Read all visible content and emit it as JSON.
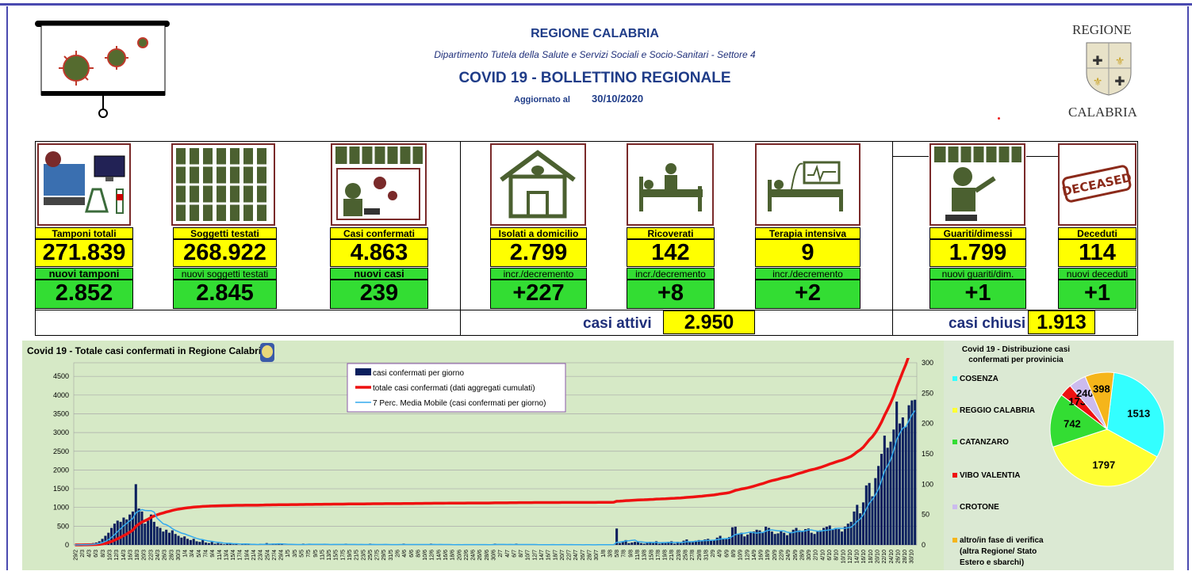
{
  "header": {
    "region": "REGIONE CALABRIA",
    "department": "Dipartimento Tutela della Salute e Servizi Sociali e Socio-Sanitari - Settore 4",
    "title": "COVID 19 - BOLLETTINO REGIONALE",
    "updated_label": "Aggiornato al",
    "updated_date": "30/10/2020",
    "logo_top": "REGIONE",
    "logo_bottom": "CALABRIA"
  },
  "stats": {
    "tamponi": {
      "label": "Tamponi totali",
      "value": "271.839",
      "sub_label": "nuovi tamponi",
      "sub_value": "2.852"
    },
    "soggetti": {
      "label": "Soggetti testati",
      "value": "268.922",
      "sub_label": "nuovi soggetti testati",
      "sub_value": "2.845"
    },
    "confermati": {
      "label": "Casi confermati",
      "value": "4.863",
      "sub_label": "nuovi casi",
      "sub_value": "239"
    },
    "isolati": {
      "label": "Isolati a domicilio",
      "value": "2.799",
      "sub_label": "incr./decremento",
      "sub_value": "+227"
    },
    "ricoverati": {
      "label": "Ricoverati",
      "value": "142",
      "sub_label": "incr./decremento",
      "sub_value": "+8"
    },
    "terapia": {
      "label": "Terapia intensiva",
      "value": "9",
      "sub_label": "incr./decremento",
      "sub_value": "+2"
    },
    "guariti": {
      "label": "Guariti/dimessi",
      "value": "1.799",
      "sub_label": "nuovi guariti/dim.",
      "sub_value": "+1"
    },
    "deceduti": {
      "label": "Deceduti",
      "value": "114",
      "sub_label": "nuovi deceduti",
      "sub_value": "+1"
    },
    "attivi": {
      "label": "casi attivi",
      "value": "2.950"
    },
    "chiusi": {
      "label": "casi chiusi",
      "value": "1.913"
    },
    "deceased_stamp": "DECEASED"
  },
  "colors": {
    "yellow": "#ffff00",
    "green": "#33dd33",
    "bar": "#0b1f5e",
    "cumulative": "#ee1111",
    "moving_avg": "#33aaee"
  },
  "chart_data": [
    {
      "type": "bar",
      "title": "Covid 19 - Totale casi confermati in Regione Calabria",
      "legend": [
        "casi confermati per giorno",
        "totale casi confermati (dati aggregati cumulati)",
        "7 Perc. Media Mobile (casi confermati per giorno)"
      ],
      "left_axis_ticks": [
        0,
        500,
        1000,
        1500,
        2000,
        2500,
        3000,
        3500,
        4000,
        4500
      ],
      "right_axis_ticks": [
        0,
        50,
        100,
        150,
        200,
        250,
        300
      ],
      "ylim_left": [
        0,
        4863
      ],
      "ylim_right": [
        0,
        300
      ],
      "x_labels": [
        "29/2",
        "2/3",
        "4/3",
        "6/3",
        "8/3",
        "10/3",
        "12/3",
        "14/3",
        "16/3",
        "18/3",
        "20/3",
        "22/3",
        "24/3",
        "26/3",
        "28/3",
        "30/3",
        "1/4",
        "3/4",
        "5/4",
        "7/4",
        "9/4",
        "11/4",
        "13/4",
        "15/4",
        "17/4",
        "19/4",
        "21/4",
        "23/4",
        "25/4",
        "27/4",
        "29/4",
        "1/5",
        "3/5",
        "5/5",
        "7/5",
        "9/5",
        "11/5",
        "13/5",
        "15/5",
        "17/5",
        "19/5",
        "21/5",
        "23/5",
        "25/5",
        "27/5",
        "29/5",
        "31/5",
        "2/6",
        "4/6",
        "6/6",
        "8/6",
        "10/6",
        "12/6",
        "14/6",
        "16/6",
        "18/6",
        "20/6",
        "22/6",
        "24/6",
        "26/6",
        "28/6",
        "30/6",
        "2/7",
        "4/7",
        "6/7",
        "8/7",
        "10/7",
        "12/7",
        "14/7",
        "16/7",
        "18/7",
        "20/7",
        "22/7",
        "24/7",
        "26/7",
        "28/7",
        "30/7",
        "1/8",
        "3/8",
        "5/8",
        "7/8",
        "9/8",
        "11/8",
        "13/8",
        "15/8",
        "17/8",
        "19/8",
        "21/8",
        "23/8",
        "25/8",
        "27/8",
        "29/8",
        "31/8",
        "2/9",
        "4/9",
        "6/9",
        "8/9",
        "10/9",
        "12/9",
        "14/9",
        "16/9",
        "18/9",
        "20/9",
        "22/9",
        "24/9",
        "26/9",
        "28/9",
        "30/9",
        "2/10",
        "4/10",
        "6/10",
        "8/10",
        "10/10",
        "12/10",
        "14/10",
        "16/10",
        "18/10",
        "20/10",
        "22/10",
        "24/10",
        "26/10",
        "28/10",
        "30/10"
      ],
      "daily_cases": [
        0,
        0,
        1,
        1,
        0,
        2,
        3,
        4,
        6,
        10,
        15,
        20,
        28,
        35,
        40,
        38,
        45,
        42,
        50,
        55,
        100,
        60,
        55,
        35,
        40,
        50,
        38,
        30,
        28,
        22,
        25,
        20,
        24,
        18,
        15,
        12,
        14,
        10,
        8,
        10,
        6,
        5,
        8,
        4,
        3,
        5,
        2,
        3,
        2,
        1,
        2,
        3,
        1,
        2,
        0,
        1,
        2,
        1,
        0,
        1,
        0,
        2,
        1,
        3,
        1,
        2,
        1,
        2,
        1,
        0,
        0,
        1,
        1,
        0,
        1,
        2,
        1,
        2,
        0,
        1,
        0,
        1,
        2,
        1,
        0,
        1,
        1,
        0,
        1,
        2,
        1,
        0,
        1,
        0,
        1,
        0,
        1,
        2,
        1,
        0,
        0,
        1,
        1,
        0,
        0,
        1,
        0,
        1,
        2,
        0,
        1,
        0,
        1,
        0,
        1,
        1,
        0,
        2,
        1,
        0,
        1,
        0,
        1,
        0,
        0,
        0,
        1,
        0,
        1,
        1,
        0,
        0,
        0,
        1,
        0,
        1,
        0,
        1,
        2,
        1,
        1,
        0,
        0,
        1,
        0,
        2,
        1,
        0,
        1,
        0,
        0,
        1,
        0,
        0,
        0,
        1,
        0,
        1,
        0,
        0,
        1,
        0,
        0,
        1,
        0,
        0,
        0,
        0,
        1,
        0,
        0,
        0,
        1,
        0,
        0,
        1,
        0,
        1,
        27,
        3,
        6,
        8,
        3,
        4,
        5,
        6,
        3,
        2,
        4,
        5,
        3,
        6,
        2,
        4,
        3,
        5,
        6,
        2,
        5,
        3,
        7,
        9,
        5,
        6,
        7,
        8,
        6,
        9,
        10,
        7,
        8,
        12,
        15,
        10,
        11,
        13,
        29,
        30,
        18,
        20,
        14,
        17,
        20,
        22,
        25,
        24,
        21,
        30,
        28,
        22,
        18,
        19,
        24,
        20,
        16,
        21,
        25,
        28,
        24,
        22,
        26,
        27,
        20,
        18,
        22,
        24,
        28,
        30,
        32,
        25,
        28,
        26,
        22,
        30,
        35,
        38,
        55,
        66,
        52,
        70,
        98,
        102,
        80,
        110,
        130,
        150,
        180,
        160,
        170,
        190,
        236,
        200,
        210,
        195,
        230,
        238,
        239
      ]
    },
    {
      "type": "pie",
      "title": "Covid 19 - Distribuzione casi confermati per provinicia",
      "labels": [
        "COSENZA",
        "REGGIO CALABRIA",
        "CATANZARO",
        "VIBO VALENTIA",
        "CROTONE",
        "altro/in fase di verifica (altra Regione/ Stato Estero e sbarchi)"
      ],
      "values": [
        1513,
        1797,
        742,
        173,
        240,
        398
      ],
      "colors": [
        "#33ffff",
        "#ffff33",
        "#33dd33",
        "#ee1111",
        "#ccbbee",
        "#f5b51a"
      ]
    }
  ]
}
